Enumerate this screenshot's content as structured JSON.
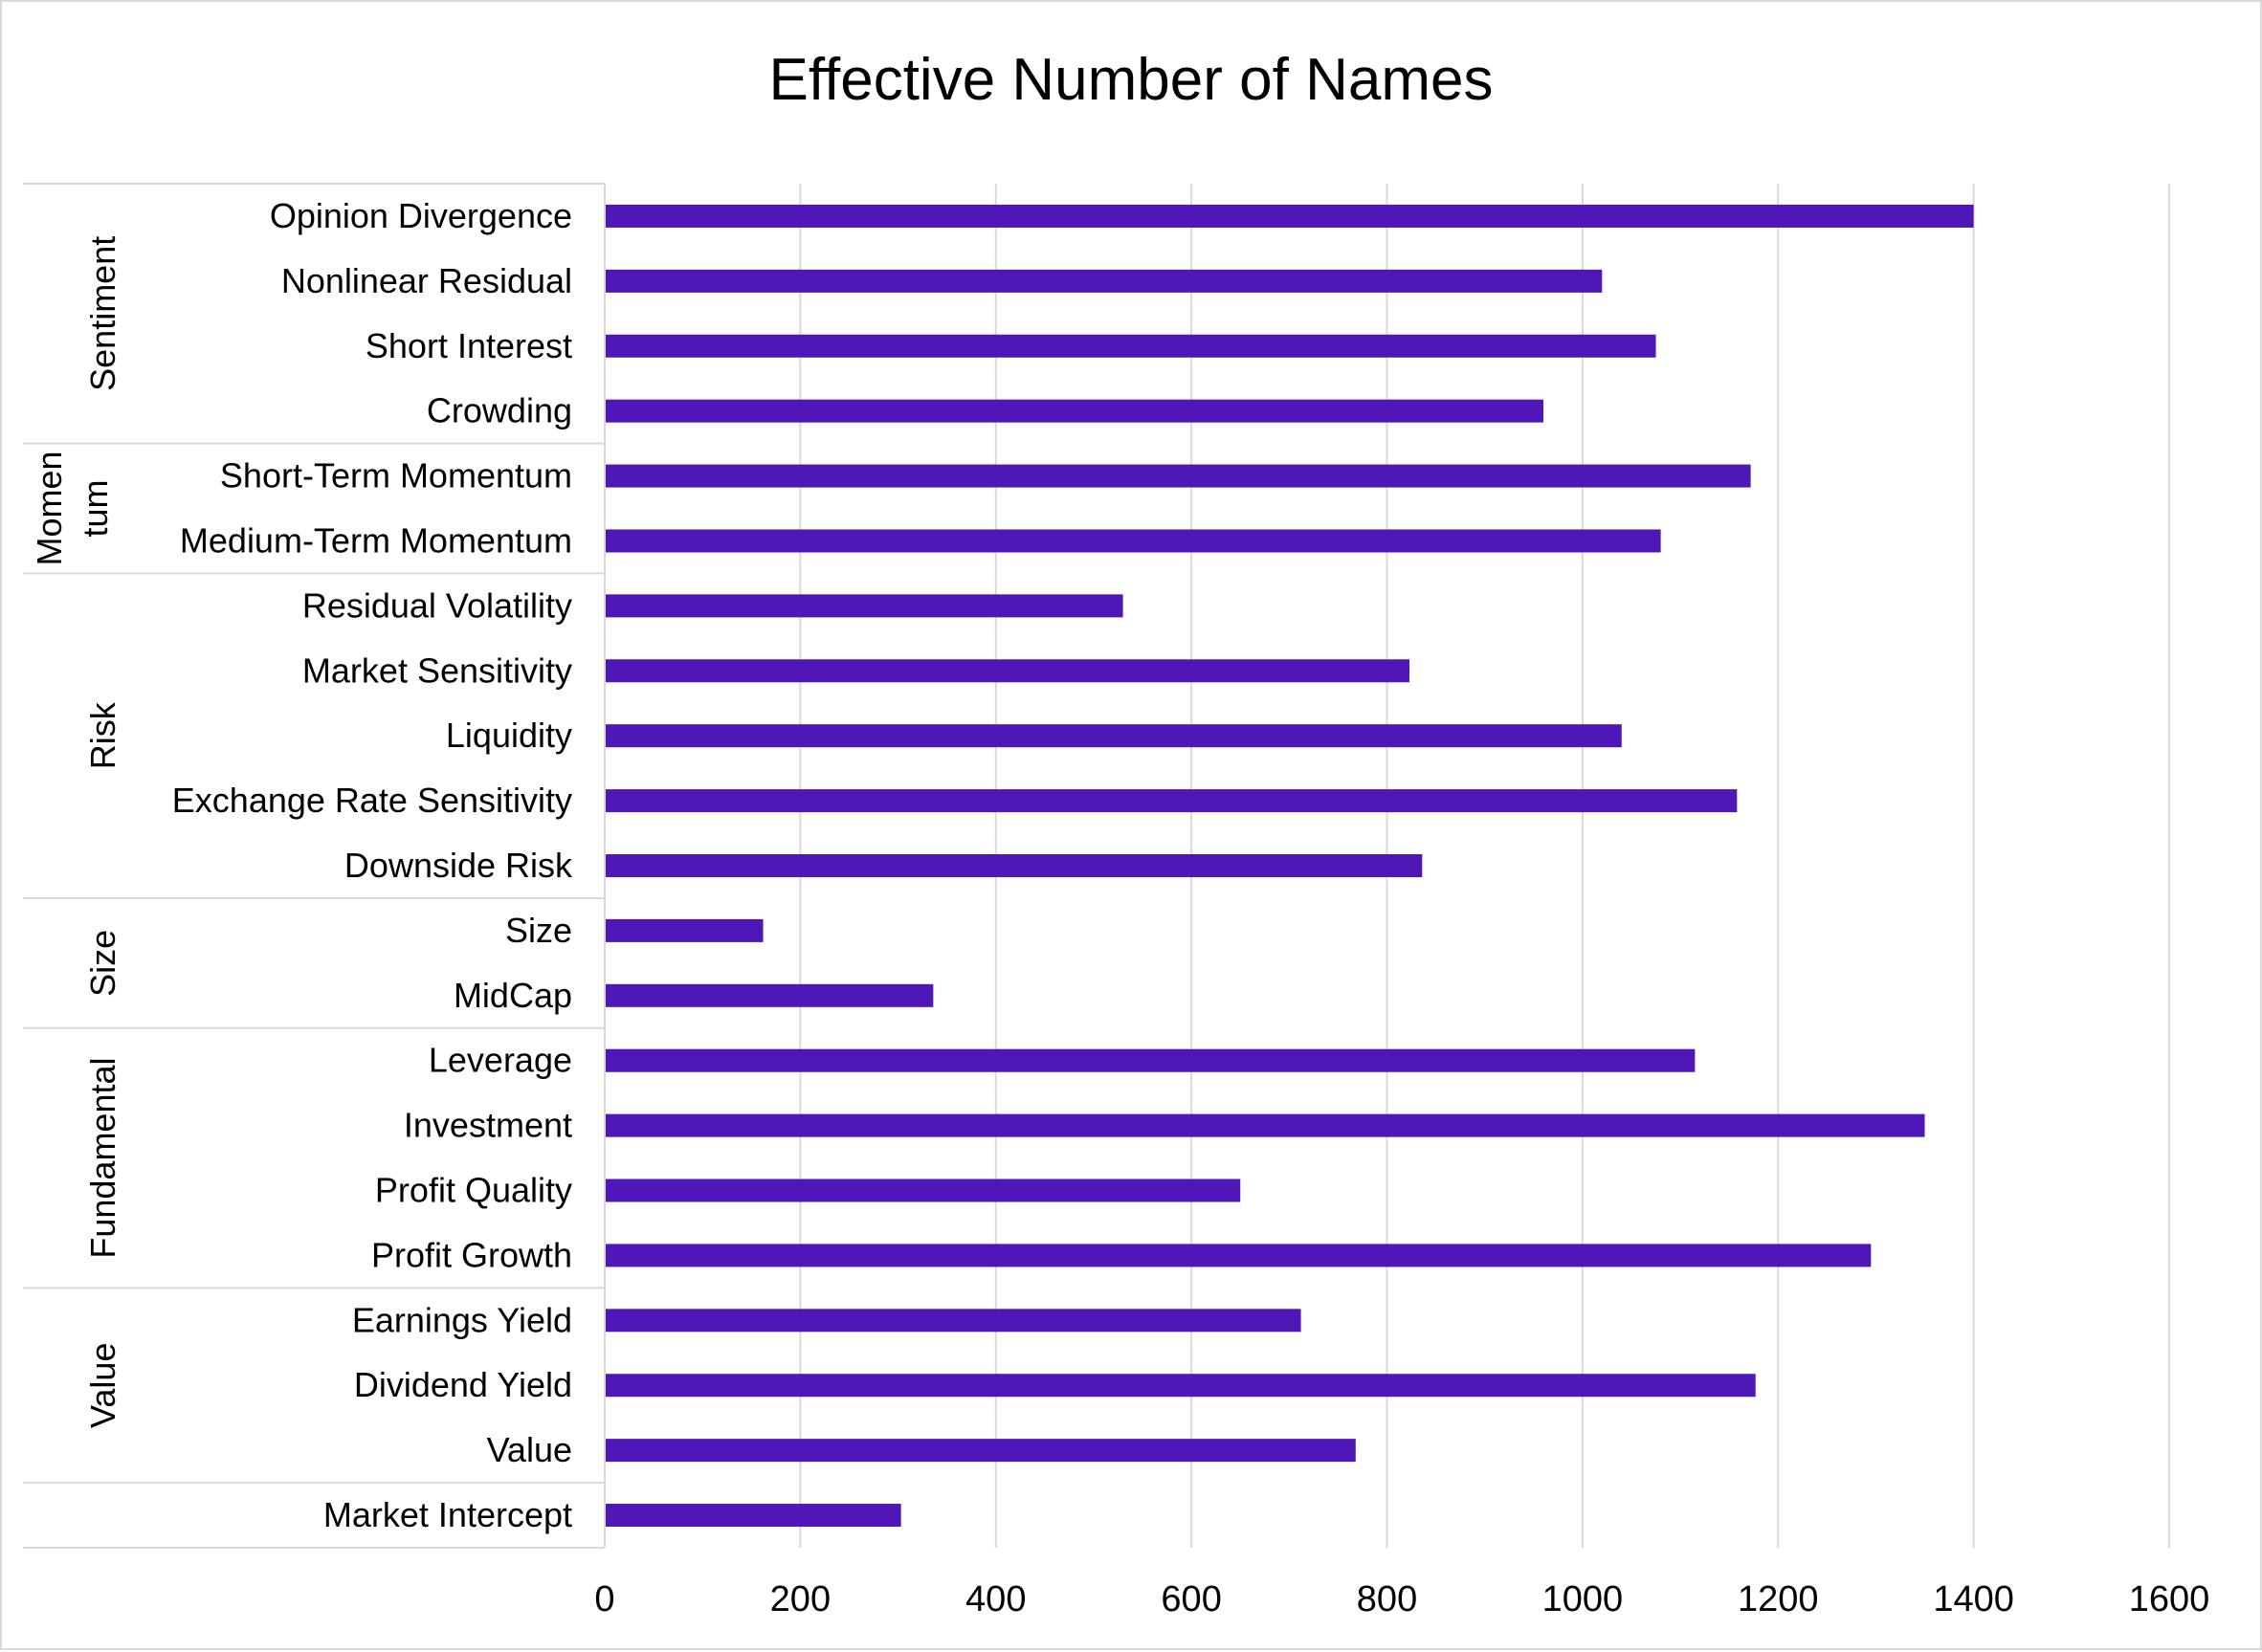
{
  "chart_data": {
    "type": "bar",
    "orientation": "horizontal",
    "title": "Effective Number of Names",
    "xlabel": "",
    "ylabel": "",
    "xlim": [
      0,
      1600
    ],
    "xticks": [
      0,
      200,
      400,
      600,
      800,
      1000,
      1200,
      1400,
      1600
    ],
    "grid": true,
    "legend": "none",
    "bar_color": "#4f17b8",
    "groups": [
      {
        "label": [
          "Sentiment"
        ],
        "categories": [
          "Opinion Divergence",
          "Nonlinear Residual",
          "Short Interest",
          "Crowding"
        ]
      },
      {
        "label": [
          "Momen",
          "tum"
        ],
        "categories": [
          "Short-Term Momentum",
          "Medium-Term Momentum"
        ]
      },
      {
        "label": [
          "Risk"
        ],
        "categories": [
          "Residual Volatility",
          "Market Sensitivity",
          "Liquidity",
          "Exchange Rate Sensitivity",
          "Downside Risk"
        ]
      },
      {
        "label": [
          "Size"
        ],
        "categories": [
          "Size",
          "MidCap"
        ]
      },
      {
        "label": [
          "Fundamental"
        ],
        "categories": [
          "Leverage",
          "Investment",
          "Profit Quality",
          "Profit Growth"
        ]
      },
      {
        "label": [
          "Value"
        ],
        "categories": [
          "Earnings Yield",
          "Dividend Yield",
          "Value"
        ]
      },
      {
        "label": [],
        "categories": [
          "Market Intercept"
        ]
      }
    ],
    "categories": [
      "Opinion Divergence",
      "Nonlinear Residual",
      "Short Interest",
      "Crowding",
      "Short-Term Momentum",
      "Medium-Term Momentum",
      "Residual Volatility",
      "Market Sensitivity",
      "Liquidity",
      "Exchange Rate Sensitivity",
      "Downside Risk",
      "Size",
      "MidCap",
      "Leverage",
      "Investment",
      "Profit Quality",
      "Profit Growth",
      "Earnings Yield",
      "Dividend Yield",
      "Value",
      "Market Intercept"
    ],
    "values": [
      1400,
      1020,
      1075,
      960,
      1172,
      1080,
      530,
      823,
      1040,
      1158,
      836,
      162,
      336,
      1115,
      1350,
      650,
      1295,
      712,
      1177,
      768,
      303
    ]
  }
}
